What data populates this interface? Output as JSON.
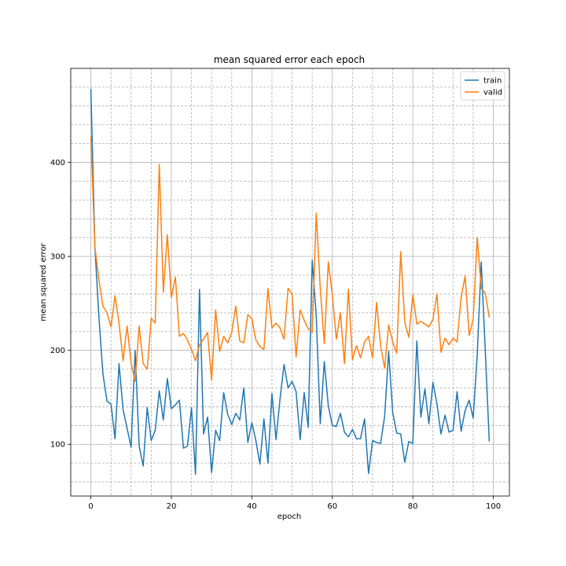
{
  "chart_data": {
    "type": "line",
    "title": "mean squared error each epoch",
    "xlabel": "epoch",
    "ylabel": "mean squared error",
    "xlim": [
      -5,
      104
    ],
    "ylim": [
      45,
      500
    ],
    "x_major_ticks": [
      0,
      20,
      40,
      60,
      80,
      100
    ],
    "y_major_ticks": [
      100,
      200,
      300,
      400
    ],
    "y_minor_step": 20,
    "x_minor_step": 5,
    "grid": true,
    "legend_position": "top-right",
    "x": [
      0,
      1,
      2,
      3,
      4,
      5,
      6,
      7,
      8,
      9,
      10,
      11,
      12,
      13,
      14,
      15,
      16,
      17,
      18,
      19,
      20,
      21,
      22,
      23,
      24,
      25,
      26,
      27,
      28,
      29,
      30,
      31,
      32,
      33,
      34,
      35,
      36,
      37,
      38,
      39,
      40,
      41,
      42,
      43,
      44,
      45,
      46,
      47,
      48,
      49,
      50,
      51,
      52,
      53,
      54,
      55,
      56,
      57,
      58,
      59,
      60,
      61,
      62,
      63,
      64,
      65,
      66,
      67,
      68,
      69,
      70,
      71,
      72,
      73,
      74,
      75,
      76,
      77,
      78,
      79,
      80,
      81,
      82,
      83,
      84,
      85,
      86,
      87,
      88,
      89,
      90,
      91,
      92,
      93,
      94,
      95,
      96,
      97,
      98,
      99
    ],
    "series": [
      {
        "name": "train",
        "color": "#1f77b4",
        "values": [
          478,
          310,
          235,
          175,
          146,
          143,
          106,
          186,
          137,
          117,
          97,
          200,
          98,
          77,
          139,
          104,
          115,
          157,
          126,
          170,
          138,
          142,
          147,
          96,
          98,
          139,
          68,
          265,
          111,
          129,
          70,
          115,
          104,
          155,
          132,
          121,
          133,
          126,
          160,
          102,
          123,
          104,
          79,
          127,
          80,
          154,
          105,
          148,
          185,
          160,
          167,
          156,
          105,
          155,
          118,
          296,
          237,
          122,
          188,
          141,
          120,
          119,
          133,
          113,
          108,
          116,
          106,
          106,
          127,
          69,
          104,
          102,
          101,
          130,
          199,
          134,
          112,
          111,
          81,
          103,
          101,
          210,
          129,
          159,
          122,
          166,
          143,
          111,
          131,
          113,
          115,
          156,
          114,
          136,
          147,
          128,
          195,
          294,
          200,
          103
        ]
      },
      {
        "name": "valid",
        "color": "#ff7f0e",
        "values": [
          428,
          310,
          275,
          247,
          240,
          225,
          258,
          229,
          189,
          226,
          186,
          167,
          226,
          186,
          180,
          234,
          229,
          398,
          262,
          323,
          256,
          278,
          215,
          218,
          211,
          201,
          189,
          206,
          212,
          219,
          168,
          243,
          199,
          215,
          208,
          219,
          247,
          210,
          208,
          238,
          234,
          211,
          204,
          201,
          266,
          224,
          229,
          224,
          212,
          266,
          260,
          193,
          243,
          232,
          223,
          219,
          346,
          266,
          207,
          294,
          259,
          212,
          240,
          186,
          265,
          190,
          205,
          192,
          209,
          215,
          192,
          251,
          205,
          181,
          227,
          209,
          197,
          305,
          230,
          214,
          259,
          228,
          231,
          228,
          225,
          233,
          260,
          198,
          213,
          206,
          213,
          209,
          256,
          279,
          216,
          233,
          320,
          266,
          261,
          235
        ]
      }
    ]
  }
}
